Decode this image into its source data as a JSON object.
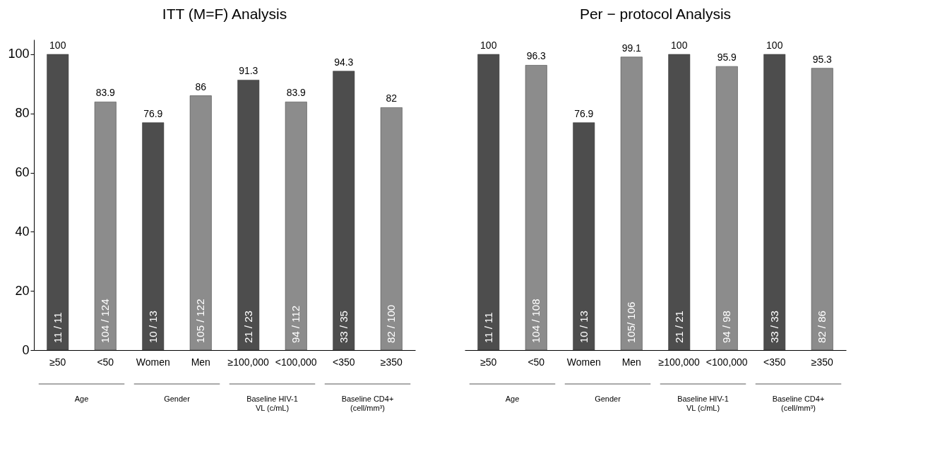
{
  "chart_data": [
    {
      "type": "bar",
      "title": "ITT (M=F) Analysis",
      "categories": [
        "≥50",
        "<50",
        "Women",
        "Men",
        "≥100,000",
        "<100,000",
        "<350",
        "≥350"
      ],
      "values": [
        100,
        83.9,
        76.9,
        86,
        91.3,
        83.9,
        94.3,
        82
      ],
      "colors": [
        "#4d4d4d",
        "#8c8c8c",
        "#4d4d4d",
        "#8c8c8c",
        "#4d4d4d",
        "#8c8c8c",
        "#4d4d4d",
        "#8c8c8c"
      ],
      "ylim": [
        0,
        105
      ],
      "yticks": [
        0,
        20,
        40,
        60,
        80,
        100
      ],
      "data_labels": true,
      "annotations": [
        "11 / 11",
        "104 / 124",
        "10 / 13",
        "105 / 122",
        "21 / 23",
        "94 / 112",
        "33 / 35",
        "82 / 100",
        "Age",
        "Gender",
        "Baseline HIV-1\nVL (c/mL)",
        "Baseline CD4+\n(cell/mm³)"
      ]
    },
    {
      "type": "bar",
      "title": "Per − protocol Analysis",
      "categories": [
        "≥50",
        "<50",
        "Women",
        "Men",
        "≥100,000",
        "<100,000",
        "<350",
        "≥350"
      ],
      "values": [
        100,
        96.3,
        76.9,
        99.1,
        100,
        95.9,
        100,
        95.3
      ],
      "colors": [
        "#4d4d4d",
        "#8c8c8c",
        "#4d4d4d",
        "#8c8c8c",
        "#4d4d4d",
        "#8c8c8c",
        "#4d4d4d",
        "#8c8c8c"
      ],
      "tick_labels": "x",
      "data_labels": true,
      "annotations": [
        "11 / 11",
        "104 / 108",
        "10 / 13",
        "105/ 106",
        "21 / 21",
        "94 / 98",
        "33 / 33",
        "82 / 86",
        "Age",
        "Gender",
        "Baseline HIV-1\nVL (c/mL)",
        "Baseline CD4+\n(cell/mm³)"
      ]
    }
  ]
}
